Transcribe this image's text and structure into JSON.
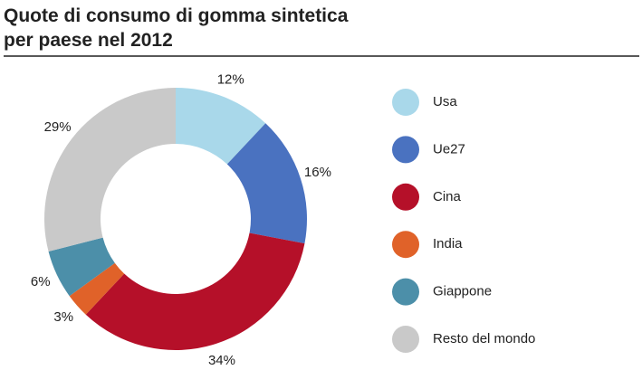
{
  "chart_data": {
    "type": "donut",
    "title": [
      "Quote di consumo di gomma sintetica",
      "per paese nel 2012"
    ],
    "categories": [
      "Usa",
      "Ue27",
      "Cina",
      "India",
      "Giappone",
      "Resto del mondo"
    ],
    "values": [
      12,
      16,
      34,
      3,
      6,
      29
    ],
    "value_labels": [
      "12%",
      "16%",
      "34%",
      "3%",
      "6%",
      "29%"
    ],
    "colors": [
      "#a9d8ea",
      "#4a72c0",
      "#b51029",
      "#e06229",
      "#4c8fa9",
      "#c9c9c9"
    ]
  }
}
